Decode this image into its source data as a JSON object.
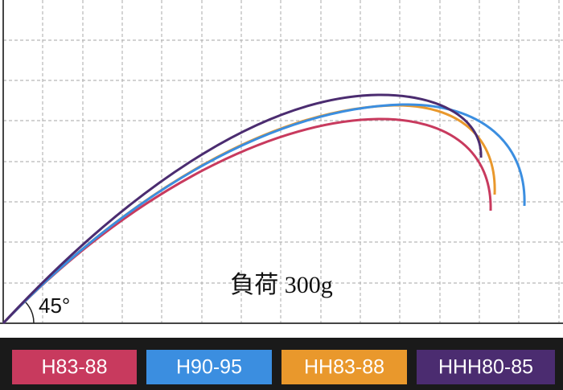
{
  "label": "負荷 300g",
  "angle": "45°",
  "legend": [
    {
      "name": "H83-88",
      "color": "#c83a5e"
    },
    {
      "name": "H90-95",
      "color": "#3b8ee0"
    },
    {
      "name": "HH83-88",
      "color": "#e9982c"
    },
    {
      "name": "HHH80-85",
      "color": "#4b2c70"
    }
  ]
}
